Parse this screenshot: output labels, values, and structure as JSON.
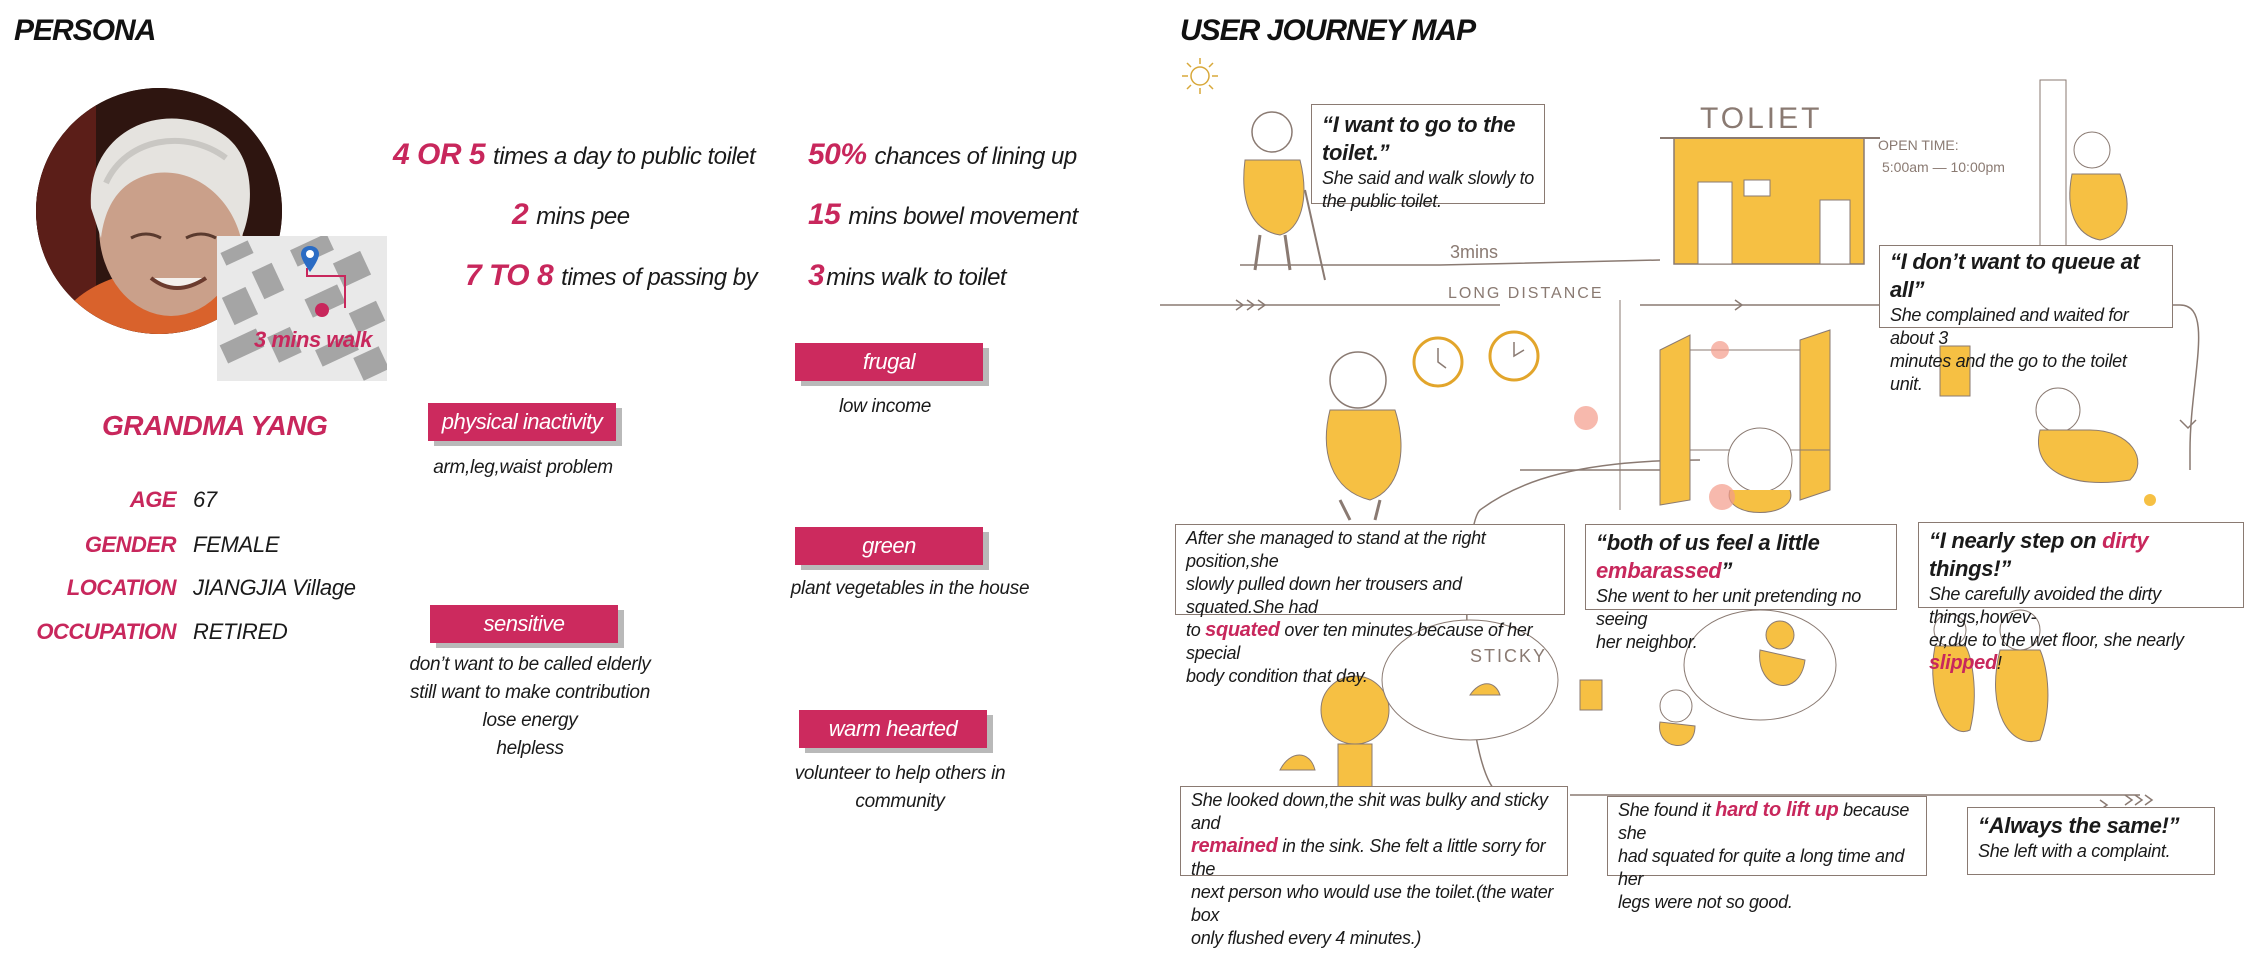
{
  "persona": {
    "title": "PERSONA",
    "name": "GRANDMA YANG",
    "map_label": "3 mins walk",
    "info": [
      {
        "label": "AGE",
        "value": "67"
      },
      {
        "label": "GENDER",
        "value": "FEMALE"
      },
      {
        "label": "LOCATION",
        "value": "JIANGJIA Village"
      },
      {
        "label": "OCCUPATION",
        "value": "RETIRED"
      }
    ],
    "stats": [
      {
        "num": "4 OR 5",
        "text": "times a day to public toilet"
      },
      {
        "num": "2",
        "text": "mins pee"
      },
      {
        "num": "7 TO 8",
        "text": "times of passing by"
      },
      {
        "num": "50%",
        "text": "chances of lining up"
      },
      {
        "num": "15",
        "text": "mins bowel movement"
      },
      {
        "num": "3",
        "text": "mins walk to toilet"
      }
    ],
    "traits": [
      {
        "tag": "physical inactivity",
        "lines": [
          "arm,leg,waist problem"
        ]
      },
      {
        "tag": "sensitive",
        "lines": [
          "don’t want to be called elderly",
          "still want to make contribution",
          "lose energy",
          "helpless"
        ]
      },
      {
        "tag": "frugal",
        "lines": [
          "low income"
        ]
      },
      {
        "tag": "green",
        "lines": [
          "plant vegetables in the house"
        ]
      },
      {
        "tag": "warm hearted",
        "lines": [
          "volunteer to help others in community"
        ]
      }
    ]
  },
  "journey": {
    "title": "USER JOURNEY MAP",
    "sketch_texts": {
      "toilet_sign": "TOLIET",
      "open_time": "OPEN TIME:",
      "open_hours": "5:00am — 10:00pm",
      "distance_mins": "3mins",
      "long_distance": "LONG DISTANCE",
      "sticky": "STICKY"
    },
    "boxes": {
      "b1_quote": "“I want to go to the toilet.”",
      "b1_l1": "She said and walk slowly to",
      "b1_l2": "the public toilet.",
      "b2_quote": "“I don’t want to queue at all”",
      "b2_l1": "She complained and waited for about 3",
      "b2_l2": "minutes and the go to the toilet unit.",
      "b3_l1": "After she managed to stand at the right position,she",
      "b3_l2": "slowly pulled down her trousers and squated.She had",
      "b3_l3a": "to ",
      "b3_hl": "squated",
      "b3_l3b": " over ten minutes because of her special",
      "b3_l4": "body condition that day.",
      "b4_qa": "“both of us feel a little ",
      "b4_hl": "embarassed",
      "b4_qb": "”",
      "b4_l1": "She went to her unit pretending no seeing",
      "b4_l2": "her neighbor.",
      "b5_qa": "“I nearly step on ",
      "b5_hl": "dirty",
      "b5_qb": " things!”",
      "b5_l1": "She carefully avoided the dirty things,howev-",
      "b5_l2a": "er,due to the wet floor, she nearly ",
      "b5_hl2": "slipped",
      "b5_l2b": "!",
      "b6_l1": "She looked down,the shit was bulky and sticky and",
      "b6_hl": "remained",
      "b6_l2b": "  in the sink. She felt a little sorry for the",
      "b6_l3": "next person who would use the toilet.(the water box",
      "b6_l4": "only flushed every 4 minutes.)",
      "b7_l1a": "She found it ",
      "b7_hl": "hard to lift up",
      "b7_l1b": "  because she",
      "b7_l2": "had squated for quite a long time and her",
      "b7_l3": "legs were not so good.",
      "b8_quote": "“Always the same!”",
      "b8_l1": "She left with a complaint."
    }
  }
}
